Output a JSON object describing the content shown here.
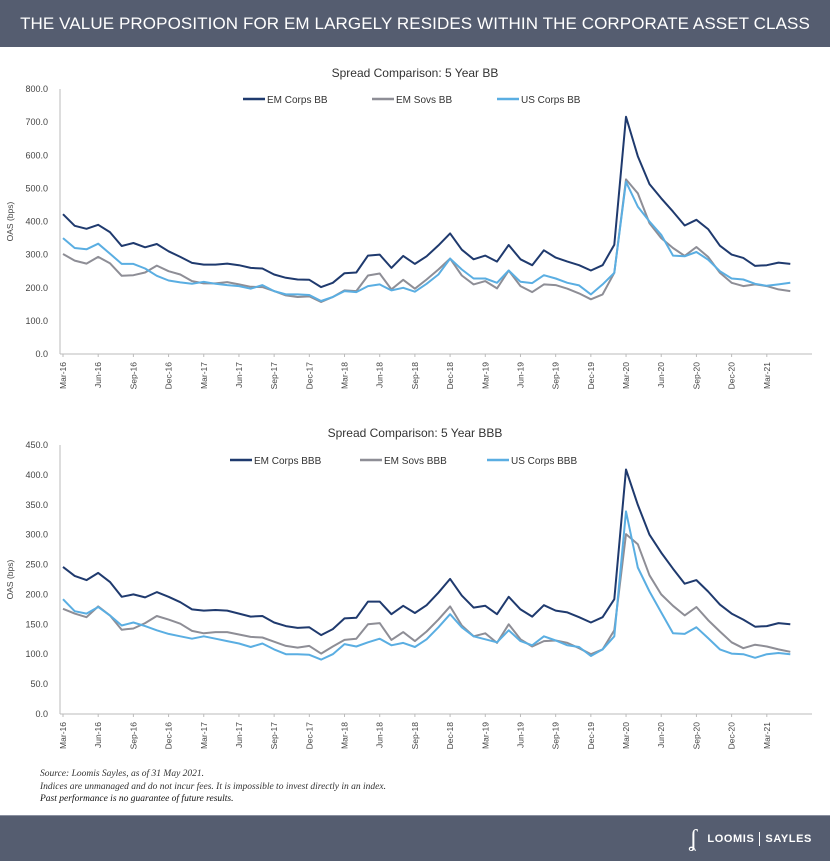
{
  "header": {
    "title": "THE VALUE PROPOSITION FOR EM LARGELY RESIDES WITHIN THE CORPORATE ASSET CLASS"
  },
  "colors": {
    "header_bg": "#555d70",
    "em_corps": "#1f3a6e",
    "em_sovs": "#8e8e96",
    "us_corps": "#5aaee2"
  },
  "chart_data": [
    {
      "type": "line",
      "title": "Spread Comparison: 5 Year BB",
      "xlabel": "",
      "ylabel": "OAS  (bps)",
      "ylim": [
        0,
        800
      ],
      "yticks": [
        "0.0",
        "100.0",
        "200.0",
        "300.0",
        "400.0",
        "500.0",
        "600.0",
        "700.0",
        "800.0"
      ],
      "x_start": "Mar-16",
      "x_end": "May-21",
      "x_frequency": "monthly",
      "xtick_labels": [
        "Mar-16",
        "Jun-16",
        "Sep-16",
        "Dec-16",
        "Mar-17",
        "Jun-17",
        "Sep-17",
        "Dec-17",
        "Mar-18",
        "Jun-18",
        "Sep-18",
        "Dec-18",
        "Mar-19",
        "Jun-19",
        "Sep-19",
        "Dec-19",
        "Mar-20",
        "Jun-20",
        "Sep-20",
        "Dec-20",
        "Mar-21"
      ],
      "legend_position": "top-center",
      "grid": false,
      "series": [
        {
          "name": "EM Corps BB",
          "color": "#1f3a6e",
          "values": [
            422,
            387,
            378,
            390,
            368,
            326,
            335,
            322,
            332,
            310,
            293,
            275,
            270,
            270,
            273,
            268,
            260,
            258,
            240,
            230,
            225,
            224,
            202,
            215,
            244,
            246,
            297,
            300,
            260,
            296,
            272,
            295,
            328,
            364,
            315,
            286,
            297,
            279,
            329,
            286,
            268,
            313,
            291,
            279,
            268,
            252,
            268,
            330,
            716,
            597,
            513,
            470,
            430,
            388,
            405,
            377,
            327,
            300,
            290,
            266,
            268,
            276,
            272
          ]
        },
        {
          "name": "EM Sovs BB",
          "color": "#8e8e96",
          "values": [
            302,
            282,
            273,
            293,
            274,
            236,
            238,
            246,
            267,
            250,
            240,
            220,
            213,
            213,
            217,
            210,
            203,
            202,
            190,
            177,
            172,
            174,
            157,
            172,
            192,
            190,
            237,
            243,
            195,
            224,
            197,
            225,
            255,
            288,
            237,
            210,
            220,
            198,
            252,
            205,
            187,
            210,
            208,
            197,
            183,
            165,
            180,
            245,
            527,
            485,
            395,
            350,
            320,
            296,
            323,
            293,
            245,
            215,
            205,
            210,
            205,
            195,
            190
          ]
        },
        {
          "name": "US Corps BB",
          "color": "#5aaee2",
          "values": [
            350,
            320,
            316,
            333,
            303,
            272,
            272,
            258,
            236,
            222,
            216,
            212,
            218,
            212,
            208,
            205,
            197,
            208,
            190,
            180,
            180,
            178,
            160,
            172,
            190,
            187,
            205,
            210,
            192,
            200,
            188,
            212,
            240,
            288,
            255,
            228,
            228,
            215,
            252,
            218,
            214,
            238,
            228,
            215,
            207,
            180,
            210,
            245,
            520,
            445,
            400,
            360,
            297,
            295,
            308,
            285,
            250,
            228,
            225,
            212,
            206,
            210,
            215
          ]
        }
      ]
    },
    {
      "type": "line",
      "title": "Spread Comparison: 5 Year BBB",
      "xlabel": "",
      "ylabel": "OAS (bps)",
      "ylim": [
        0,
        450
      ],
      "yticks": [
        "0.0",
        "50.0",
        "100.0",
        "150.0",
        "200.0",
        "250.0",
        "300.0",
        "350.0",
        "400.0",
        "450.0"
      ],
      "x_start": "Mar-16",
      "x_end": "May-21",
      "x_frequency": "monthly",
      "xtick_labels": [
        "Mar-16",
        "Jun-16",
        "Sep-16",
        "Dec-16",
        "Mar-17",
        "Jun-17",
        "Sep-17",
        "Dec-17",
        "Mar-18",
        "Jun-18",
        "Sep-18",
        "Dec-18",
        "Mar-19",
        "Jun-19",
        "Sep-19",
        "Dec-19",
        "Mar-20",
        "Jun-20",
        "Sep-20",
        "Dec-20",
        "Mar-21"
      ],
      "legend_position": "top-center",
      "grid": false,
      "series": [
        {
          "name": "EM Corps BBB",
          "color": "#1f3a6e",
          "values": [
            246,
            231,
            224,
            236,
            221,
            196,
            200,
            195,
            204,
            196,
            187,
            175,
            173,
            174,
            173,
            168,
            163,
            164,
            153,
            147,
            144,
            145,
            132,
            142,
            160,
            161,
            188,
            188,
            167,
            181,
            169,
            182,
            203,
            226,
            198,
            178,
            181,
            167,
            196,
            175,
            163,
            182,
            173,
            170,
            162,
            153,
            162,
            192,
            409,
            350,
            300,
            270,
            243,
            218,
            224,
            205,
            183,
            168,
            158,
            146,
            147,
            152,
            150
          ]
        },
        {
          "name": "EM Sovs BBB",
          "color": "#8e8e96",
          "values": [
            176,
            168,
            162,
            180,
            165,
            141,
            143,
            152,
            164,
            158,
            151,
            139,
            135,
            137,
            137,
            133,
            129,
            128,
            121,
            114,
            111,
            114,
            101,
            113,
            124,
            126,
            150,
            152,
            124,
            137,
            122,
            138,
            158,
            180,
            148,
            130,
            135,
            119,
            150,
            125,
            113,
            122,
            123,
            119,
            110,
            100,
            108,
            140,
            301,
            284,
            232,
            200,
            181,
            165,
            179,
            157,
            138,
            120,
            110,
            116,
            113,
            108,
            104
          ]
        },
        {
          "name": "US Corps BBB",
          "color": "#5aaee2",
          "values": [
            192,
            172,
            168,
            179,
            165,
            148,
            153,
            147,
            140,
            134,
            130,
            126,
            130,
            126,
            122,
            118,
            112,
            118,
            108,
            100,
            100,
            99,
            91,
            100,
            117,
            113,
            120,
            126,
            115,
            119,
            112,
            125,
            145,
            167,
            145,
            130,
            125,
            120,
            140,
            122,
            115,
            130,
            123,
            115,
            112,
            97,
            108,
            130,
            339,
            245,
            205,
            170,
            135,
            134,
            145,
            127,
            108,
            101,
            100,
            94,
            100,
            102,
            100
          ]
        }
      ]
    }
  ],
  "notes": {
    "source": "Source: Loomis Sayles, as of 31 May 2021.",
    "disclaimer": "Indices are unmanaged and do not incur fees. It is impossible to invest directly in an index.",
    "past_performance": "Past performance is no guarantee of future results."
  },
  "footer": {
    "logo_mark": "LS",
    "brand_left": "LOOMIS",
    "brand_right": "SAYLES"
  }
}
